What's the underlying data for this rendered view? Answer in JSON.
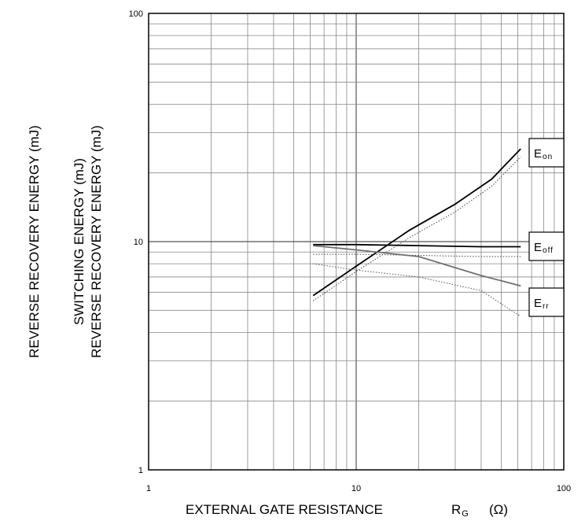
{
  "chart_data": {
    "type": "line",
    "xscale": "log",
    "yscale": "log",
    "xlim": [
      1,
      100
    ],
    "ylim": [
      1,
      100
    ],
    "grid": true,
    "x_ticks": [
      "1",
      "10",
      "100"
    ],
    "y_ticks": [
      "1",
      "10",
      "100"
    ],
    "xlabel_main": "EXTERNAL GATE RESISTANCE",
    "xlabel_symbol": "R",
    "xlabel_symbol_sub": "G",
    "xlabel_unit": "(Ω)",
    "ylabel_outer": "REVERSE RECOVERY ENERGY   (mJ)",
    "ylabel_inner_1": "SWITCHING ENERGY   (mJ)",
    "ylabel_inner_2": "REVERSE RECOVERY ENERGY   (mJ)",
    "series": [
      {
        "name": "Eon",
        "label_main": "E",
        "label_sub": "on",
        "style": "solid",
        "color": "#000000",
        "x": [
          6.2,
          10,
          18,
          30,
          45,
          62
        ],
        "y": [
          5.8,
          7.8,
          11.2,
          14.6,
          18.8,
          25.5
        ]
      },
      {
        "name": "Eon-dotted",
        "style": "dotted",
        "color": "#444444",
        "x": [
          6.2,
          10,
          18,
          30,
          45,
          62
        ],
        "y": [
          5.5,
          7.4,
          10.4,
          13.5,
          17.5,
          23.5
        ]
      },
      {
        "name": "Eoff",
        "label_main": "E",
        "label_sub": "off",
        "style": "solid",
        "color": "#000000",
        "x": [
          6.2,
          10,
          20,
          40,
          62
        ],
        "y": [
          9.7,
          9.7,
          9.6,
          9.5,
          9.5
        ]
      },
      {
        "name": "Eoff-dotted",
        "style": "dotted",
        "color": "#444444",
        "x": [
          6.2,
          10,
          20,
          40,
          62
        ],
        "y": [
          8.8,
          8.8,
          8.7,
          8.6,
          8.6
        ]
      },
      {
        "name": "Err",
        "label_main": "E",
        "label_sub": "rr",
        "style": "solid",
        "color": "#707070",
        "x": [
          6.2,
          10,
          20,
          40,
          62
        ],
        "y": [
          9.6,
          9.2,
          8.6,
          7.1,
          6.4
        ]
      },
      {
        "name": "Err-dotted",
        "style": "dotted",
        "color": "#555555",
        "x": [
          6.2,
          10,
          20,
          40,
          62
        ],
        "y": [
          8.0,
          7.5,
          7.0,
          6.1,
          4.7
        ]
      }
    ]
  }
}
